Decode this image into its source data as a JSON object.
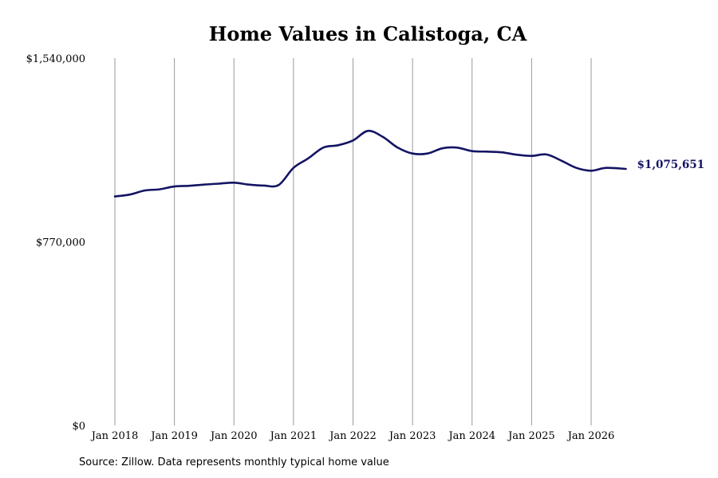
{
  "chart_data": {
    "type": "line",
    "title": "Home Values in Calistoga, CA",
    "xlabel": "",
    "ylabel": "",
    "ylim": [
      0,
      1540000
    ],
    "y_ticks": [
      {
        "value": 0,
        "label": "$0"
      },
      {
        "value": 770000,
        "label": "$770,000"
      },
      {
        "value": 1540000,
        "label": "$1,540,000"
      }
    ],
    "x_range": [
      "2018-01",
      "2026-08"
    ],
    "x_ticks": [
      {
        "date": "2018-01",
        "label": "Jan 2018"
      },
      {
        "date": "2019-01",
        "label": "Jan 2019"
      },
      {
        "date": "2020-01",
        "label": "Jan 2020"
      },
      {
        "date": "2021-01",
        "label": "Jan 2021"
      },
      {
        "date": "2022-01",
        "label": "Jan 2022"
      },
      {
        "date": "2023-01",
        "label": "Jan 2023"
      },
      {
        "date": "2024-01",
        "label": "Jan 2024"
      },
      {
        "date": "2025-01",
        "label": "Jan 2025"
      },
      {
        "date": "2026-01",
        "label": "Jan 2026"
      }
    ],
    "grid": {
      "vertical": true,
      "horizontal": false
    },
    "series": [
      {
        "color": "#141464",
        "points": [
          {
            "x": "2018-01",
            "y": 960000
          },
          {
            "x": "2018-04",
            "y": 968000
          },
          {
            "x": "2018-07",
            "y": 985000
          },
          {
            "x": "2018-10",
            "y": 990000
          },
          {
            "x": "2019-01",
            "y": 1002000
          },
          {
            "x": "2019-04",
            "y": 1005000
          },
          {
            "x": "2019-07",
            "y": 1010000
          },
          {
            "x": "2019-10",
            "y": 1014000
          },
          {
            "x": "2020-01",
            "y": 1018000
          },
          {
            "x": "2020-04",
            "y": 1010000
          },
          {
            "x": "2020-07",
            "y": 1006000
          },
          {
            "x": "2020-10",
            "y": 1008000
          },
          {
            "x": "2021-01",
            "y": 1080000
          },
          {
            "x": "2021-04",
            "y": 1120000
          },
          {
            "x": "2021-07",
            "y": 1165000
          },
          {
            "x": "2021-10",
            "y": 1175000
          },
          {
            "x": "2022-01",
            "y": 1195000
          },
          {
            "x": "2022-04",
            "y": 1235000
          },
          {
            "x": "2022-07",
            "y": 1210000
          },
          {
            "x": "2022-10",
            "y": 1165000
          },
          {
            "x": "2023-01",
            "y": 1140000
          },
          {
            "x": "2023-04",
            "y": 1140000
          },
          {
            "x": "2023-07",
            "y": 1162000
          },
          {
            "x": "2023-10",
            "y": 1165000
          },
          {
            "x": "2024-01",
            "y": 1150000
          },
          {
            "x": "2024-04",
            "y": 1148000
          },
          {
            "x": "2024-07",
            "y": 1145000
          },
          {
            "x": "2024-10",
            "y": 1135000
          },
          {
            "x": "2025-01",
            "y": 1130000
          },
          {
            "x": "2025-04",
            "y": 1136000
          },
          {
            "x": "2025-07",
            "y": 1110000
          },
          {
            "x": "2025-10",
            "y": 1080000
          },
          {
            "x": "2026-01",
            "y": 1068000
          },
          {
            "x": "2026-04",
            "y": 1080000
          },
          {
            "x": "2026-08",
            "y": 1075651
          }
        ]
      }
    ],
    "end_label": {
      "text": "$1,075,651",
      "color": "#141464"
    }
  },
  "source_note": "Source: Zillow. Data represents monthly typical home value"
}
